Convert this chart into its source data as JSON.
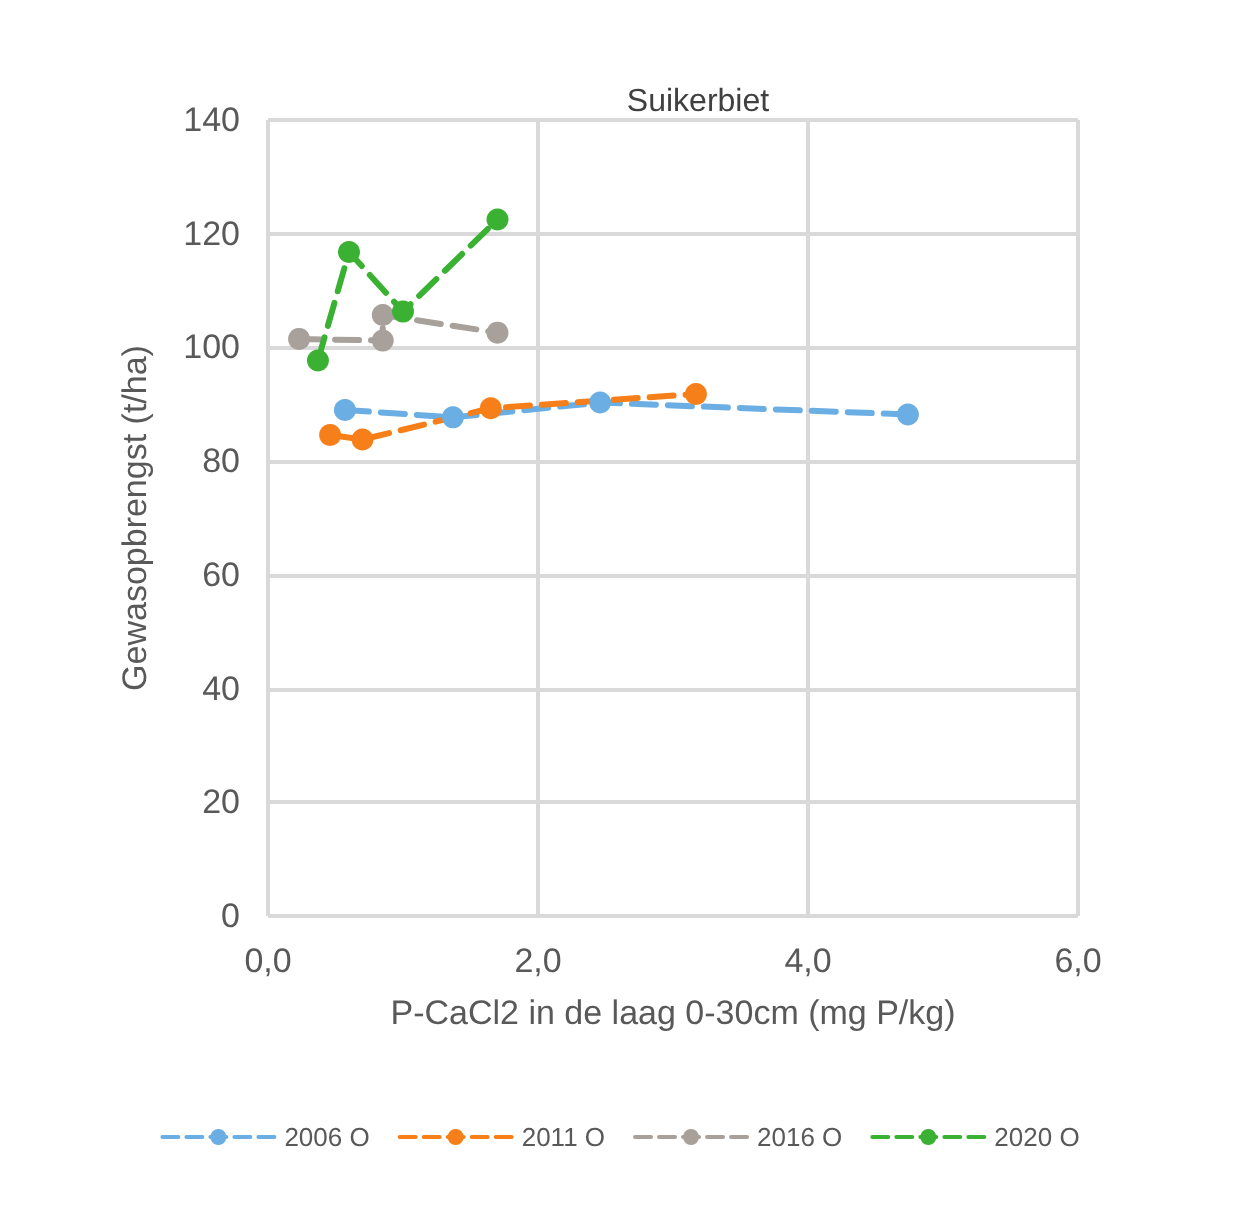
{
  "chart_data": {
    "type": "line",
    "title": "Suikerbiet",
    "xlabel": "P-CaCl2 in de laag 0-30cm (mg P/kg)",
    "ylabel": "Gewasopbrengst (t/ha)",
    "xlim": [
      0,
      6
    ],
    "xticks": [
      {
        "value": 0,
        "label": "0,0"
      },
      {
        "value": 2,
        "label": "2,0"
      },
      {
        "value": 4,
        "label": "4,0"
      },
      {
        "value": 6,
        "label": "6,0"
      }
    ],
    "ylim": [
      0,
      140
    ],
    "yticks": [
      0,
      20,
      40,
      60,
      80,
      100,
      120,
      140
    ],
    "grid": true,
    "legend": "bottom",
    "marker": "circle",
    "line_style": "dashed",
    "series": [
      {
        "name": "2006 O",
        "color": "#6aaee3",
        "x": [
          0.57,
          1.37,
          2.46,
          4.74
        ],
        "values": [
          89.0,
          87.7,
          90.3,
          88.2
        ]
      },
      {
        "name": "2011 O",
        "color": "#f77f1a",
        "x": [
          0.46,
          0.7,
          1.65,
          3.17
        ],
        "values": [
          84.6,
          83.8,
          89.3,
          91.8
        ]
      },
      {
        "name": "2016 O",
        "color": "#a8a09a",
        "x": [
          0.23,
          0.85,
          0.85,
          1.7
        ],
        "values": [
          101.5,
          101.2,
          105.7,
          102.6
        ]
      },
      {
        "name": "2020 O",
        "color": "#3bb133",
        "x": [
          0.37,
          0.6,
          1.0,
          1.7
        ],
        "values": [
          97.7,
          116.8,
          106.3,
          122.5
        ]
      }
    ]
  }
}
